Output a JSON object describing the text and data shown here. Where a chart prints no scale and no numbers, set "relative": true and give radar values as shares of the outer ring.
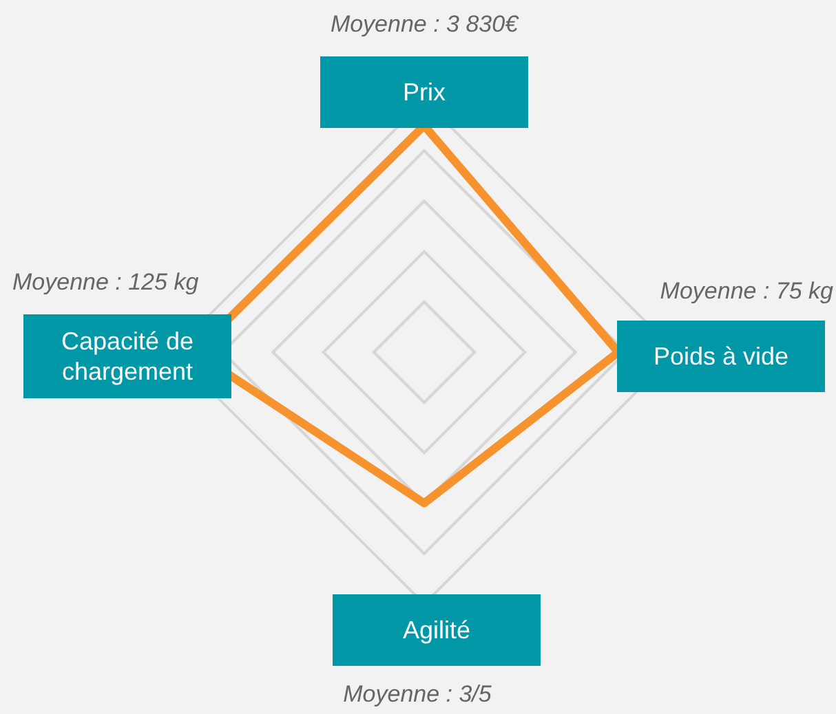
{
  "chart_data": {
    "type": "radar",
    "relative": true,
    "grid": true,
    "categories": [
      "Prix",
      "Poids à vide",
      "Agilité",
      "Capacité de chargement"
    ],
    "series": [
      {
        "color": "#f7932f",
        "values": [
          0.9,
          0.77,
          0.6,
          0.91
        ]
      }
    ],
    "annotations": [
      "Moyenne : 3 830€",
      "Moyenne : 75 kg",
      "Moyenne : 3/5",
      "Moyenne : 125 kg"
    ]
  }
}
